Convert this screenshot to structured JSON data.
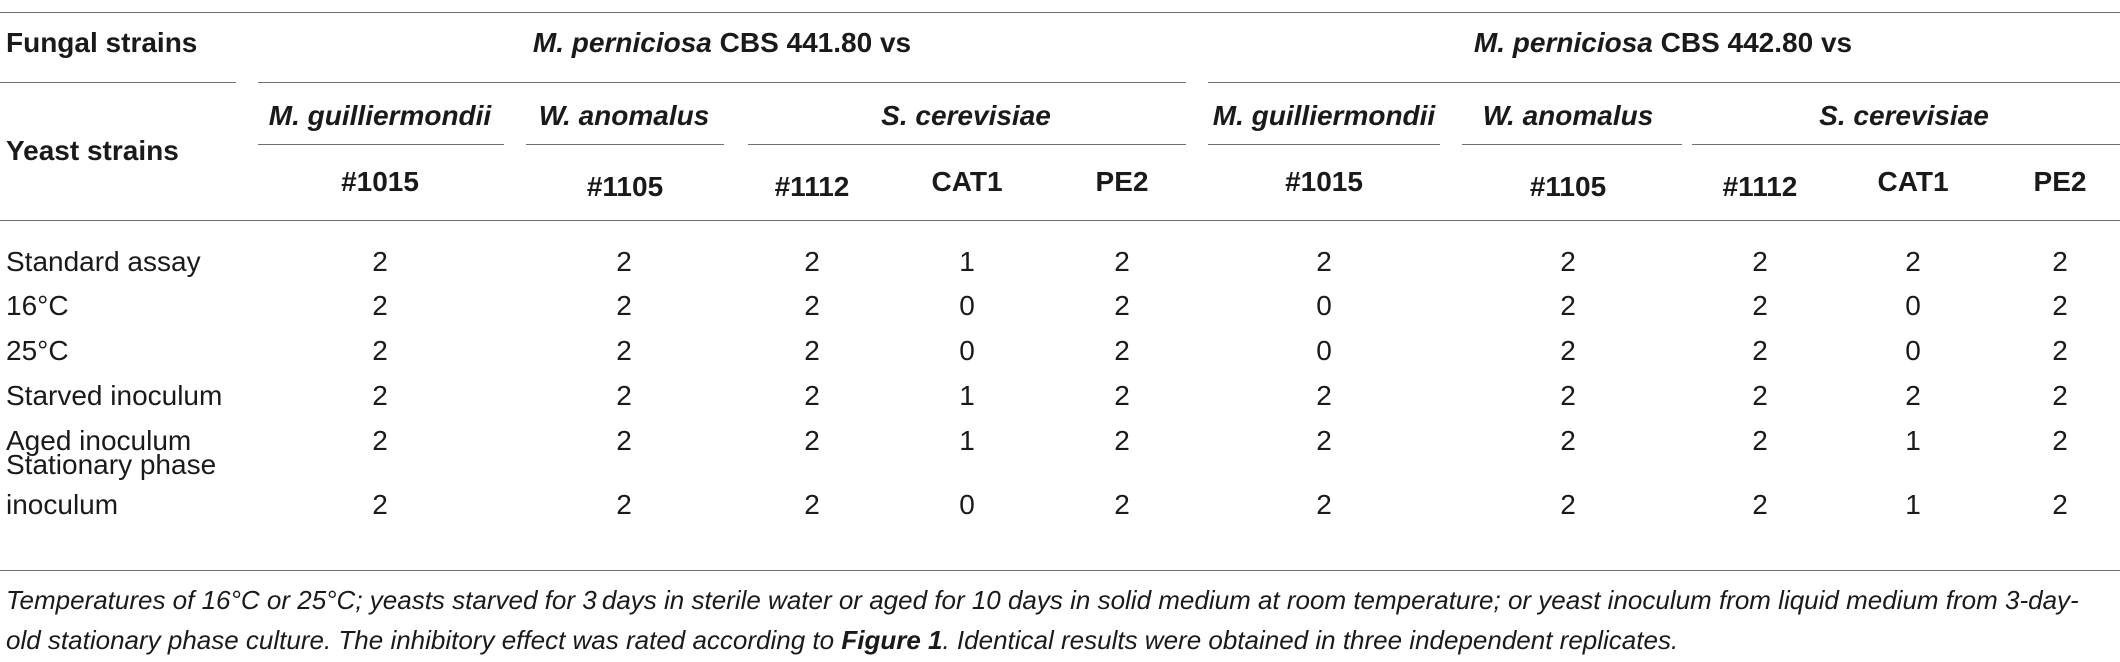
{
  "header": {
    "fungal_strains_label": "Fungal strains",
    "yeast_strains_label": "Yeast strains",
    "groups": [
      {
        "species_italic": "M. perniciosa",
        "suffix": " CBS 441.80 vs"
      },
      {
        "species_italic": "M. perniciosa",
        "suffix": " CBS 442.80 vs"
      }
    ],
    "species": [
      "M. guilliermondii",
      "W. anomalus",
      "S. cerevisiae"
    ],
    "strains": [
      "#1015",
      "#1105",
      "#1112",
      "CAT1",
      "PE2"
    ]
  },
  "rows": [
    {
      "label": "Standard assay",
      "values": [
        "2",
        "2",
        "2",
        "1",
        "2",
        "2",
        "2",
        "2",
        "2",
        "2"
      ]
    },
    {
      "label": "16°C",
      "values": [
        "2",
        "2",
        "2",
        "0",
        "2",
        "0",
        "2",
        "2",
        "0",
        "2"
      ]
    },
    {
      "label": "25°C",
      "values": [
        "2",
        "2",
        "2",
        "0",
        "2",
        "0",
        "2",
        "2",
        "0",
        "2"
      ]
    },
    {
      "label": "Starved inoculum",
      "values": [
        "2",
        "2",
        "2",
        "1",
        "2",
        "2",
        "2",
        "2",
        "2",
        "2"
      ]
    },
    {
      "label": "Aged inoculum",
      "values": [
        "2",
        "2",
        "2",
        "1",
        "2",
        "2",
        "2",
        "2",
        "1",
        "2"
      ]
    },
    {
      "label_line1": "Stationary phase",
      "label_line2": "inoculum",
      "values": [
        "2",
        "2",
        "2",
        "0",
        "2",
        "2",
        "2",
        "2",
        "1",
        "2"
      ]
    }
  ],
  "footnote": {
    "part1": "Temperatures of 16°C or 25°C; yeasts starved for 3 days in sterile water or aged for 10 days in solid medium at room temperature; or yeast inoculum from liquid medium from 3-day-old stationary phase culture. The inhibitory effect was rated according to ",
    "figure_ref": "Figure 1",
    "part2": ". Identical results were obtained in three independent replicates."
  }
}
